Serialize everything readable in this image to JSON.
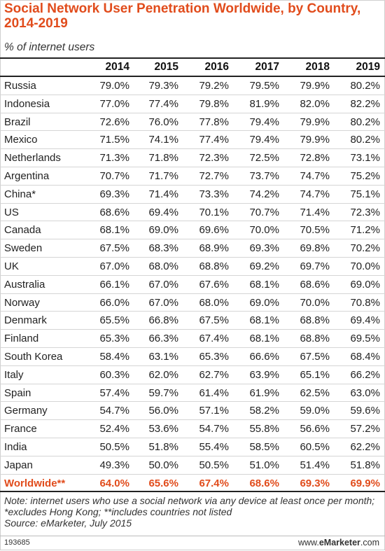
{
  "chart_data": {
    "type": "table",
    "title": "Social Network User Penetration Worldwide, by Country, 2014-2019",
    "subtitle": "% of internet users",
    "columns": [
      "2014",
      "2015",
      "2016",
      "2017",
      "2018",
      "2019"
    ],
    "rows": [
      {
        "name": "Russia",
        "values": [
          "79.0%",
          "79.3%",
          "79.2%",
          "79.5%",
          "79.9%",
          "80.2%"
        ]
      },
      {
        "name": "Indonesia",
        "values": [
          "77.0%",
          "77.4%",
          "79.8%",
          "81.9%",
          "82.0%",
          "82.2%"
        ]
      },
      {
        "name": "Brazil",
        "values": [
          "72.6%",
          "76.0%",
          "77.8%",
          "79.4%",
          "79.9%",
          "80.2%"
        ]
      },
      {
        "name": "Mexico",
        "values": [
          "71.5%",
          "74.1%",
          "77.4%",
          "79.4%",
          "79.9%",
          "80.2%"
        ]
      },
      {
        "name": "Netherlands",
        "values": [
          "71.3%",
          "71.8%",
          "72.3%",
          "72.5%",
          "72.8%",
          "73.1%"
        ]
      },
      {
        "name": "Argentina",
        "values": [
          "70.7%",
          "71.7%",
          "72.7%",
          "73.7%",
          "74.7%",
          "75.2%"
        ]
      },
      {
        "name": "China*",
        "values": [
          "69.3%",
          "71.4%",
          "73.3%",
          "74.2%",
          "74.7%",
          "75.1%"
        ]
      },
      {
        "name": "US",
        "values": [
          "68.6%",
          "69.4%",
          "70.1%",
          "70.7%",
          "71.4%",
          "72.3%"
        ]
      },
      {
        "name": "Canada",
        "values": [
          "68.1%",
          "69.0%",
          "69.6%",
          "70.0%",
          "70.5%",
          "71.2%"
        ]
      },
      {
        "name": "Sweden",
        "values": [
          "67.5%",
          "68.3%",
          "68.9%",
          "69.3%",
          "69.8%",
          "70.2%"
        ]
      },
      {
        "name": "UK",
        "values": [
          "67.0%",
          "68.0%",
          "68.8%",
          "69.2%",
          "69.7%",
          "70.0%"
        ]
      },
      {
        "name": "Australia",
        "values": [
          "66.1%",
          "67.0%",
          "67.6%",
          "68.1%",
          "68.6%",
          "69.0%"
        ]
      },
      {
        "name": "Norway",
        "values": [
          "66.0%",
          "67.0%",
          "68.0%",
          "69.0%",
          "70.0%",
          "70.8%"
        ]
      },
      {
        "name": "Denmark",
        "values": [
          "65.5%",
          "66.8%",
          "67.5%",
          "68.1%",
          "68.8%",
          "69.4%"
        ]
      },
      {
        "name": "Finland",
        "values": [
          "65.3%",
          "66.3%",
          "67.4%",
          "68.1%",
          "68.8%",
          "69.5%"
        ]
      },
      {
        "name": "South Korea",
        "values": [
          "58.4%",
          "63.1%",
          "65.3%",
          "66.6%",
          "67.5%",
          "68.4%"
        ]
      },
      {
        "name": "Italy",
        "values": [
          "60.3%",
          "62.0%",
          "62.7%",
          "63.9%",
          "65.1%",
          "66.2%"
        ]
      },
      {
        "name": "Spain",
        "values": [
          "57.4%",
          "59.7%",
          "61.4%",
          "61.9%",
          "62.5%",
          "63.0%"
        ]
      },
      {
        "name": "Germany",
        "values": [
          "54.7%",
          "56.0%",
          "57.1%",
          "58.2%",
          "59.0%",
          "59.6%"
        ]
      },
      {
        "name": "France",
        "values": [
          "52.4%",
          "53.6%",
          "54.7%",
          "55.8%",
          "56.6%",
          "57.2%"
        ]
      },
      {
        "name": "India",
        "values": [
          "50.5%",
          "51.8%",
          "55.4%",
          "58.5%",
          "60.5%",
          "62.2%"
        ]
      },
      {
        "name": "Japan",
        "values": [
          "49.3%",
          "50.0%",
          "50.5%",
          "51.0%",
          "51.4%",
          "51.8%"
        ]
      }
    ],
    "total": {
      "name": "Worldwide**",
      "values": [
        "64.0%",
        "65.6%",
        "67.4%",
        "68.6%",
        "69.3%",
        "69.9%"
      ]
    },
    "note": "Note: internet users who use a social network via any device at least once per month; *excludes Hong Kong; **includes countries not listed",
    "source": "Source: eMarketer, July 2015"
  },
  "footer": {
    "id": "193685",
    "brand_prefix": "www.",
    "brand_name": "eMarketer",
    "brand_suffix": ".com"
  },
  "colors": {
    "accent": "#e14c1c",
    "text": "#222222",
    "rule": "#d5d5d5"
  }
}
